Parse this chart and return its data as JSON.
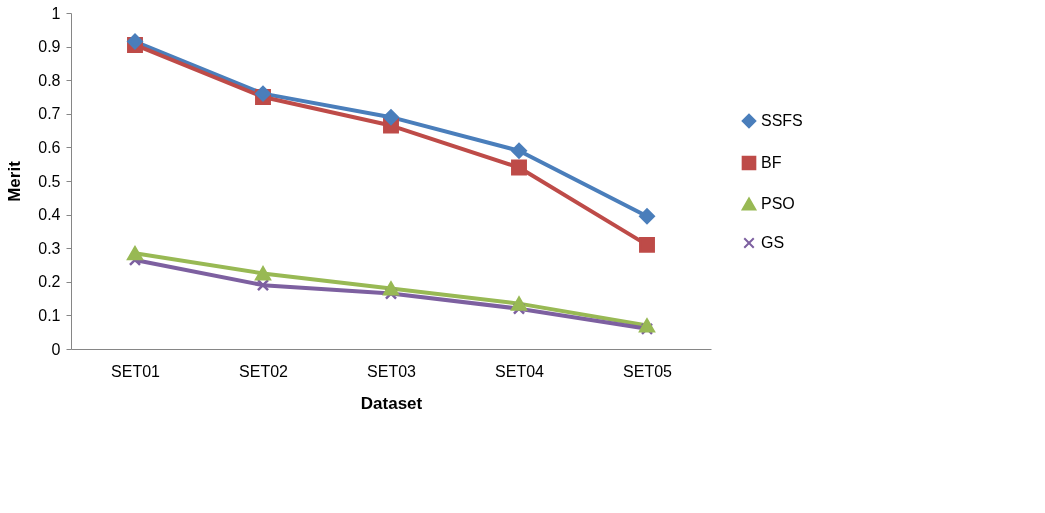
{
  "chart_data": {
    "type": "line",
    "xlabel": "Dataset",
    "ylabel": "Merit",
    "categories": [
      "SET01",
      "SET02",
      "SET03",
      "SET04",
      "SET05"
    ],
    "series": [
      {
        "name": "SSFS",
        "color": "#4a7ebb",
        "marker": "diamond",
        "values": [
          0.915,
          0.76,
          0.69,
          0.59,
          0.395
        ]
      },
      {
        "name": "BF",
        "color": "#be4b48",
        "marker": "square",
        "values": [
          0.905,
          0.75,
          0.665,
          0.54,
          0.31
        ]
      },
      {
        "name": "PSO",
        "color": "#98b954",
        "marker": "triangle",
        "values": [
          0.285,
          0.225,
          0.18,
          0.135,
          0.07
        ]
      },
      {
        "name": "GS",
        "color": "#7d60a0",
        "marker": "cross",
        "values": [
          0.265,
          0.19,
          0.165,
          0.12,
          0.06
        ]
      }
    ],
    "ylim": [
      0,
      1
    ],
    "yticks": [
      0,
      0.1,
      0.2,
      0.3,
      0.4,
      0.5,
      0.6,
      0.7,
      0.8,
      0.9,
      1
    ],
    "grid": false,
    "legend": "right",
    "line_style": "solid"
  }
}
